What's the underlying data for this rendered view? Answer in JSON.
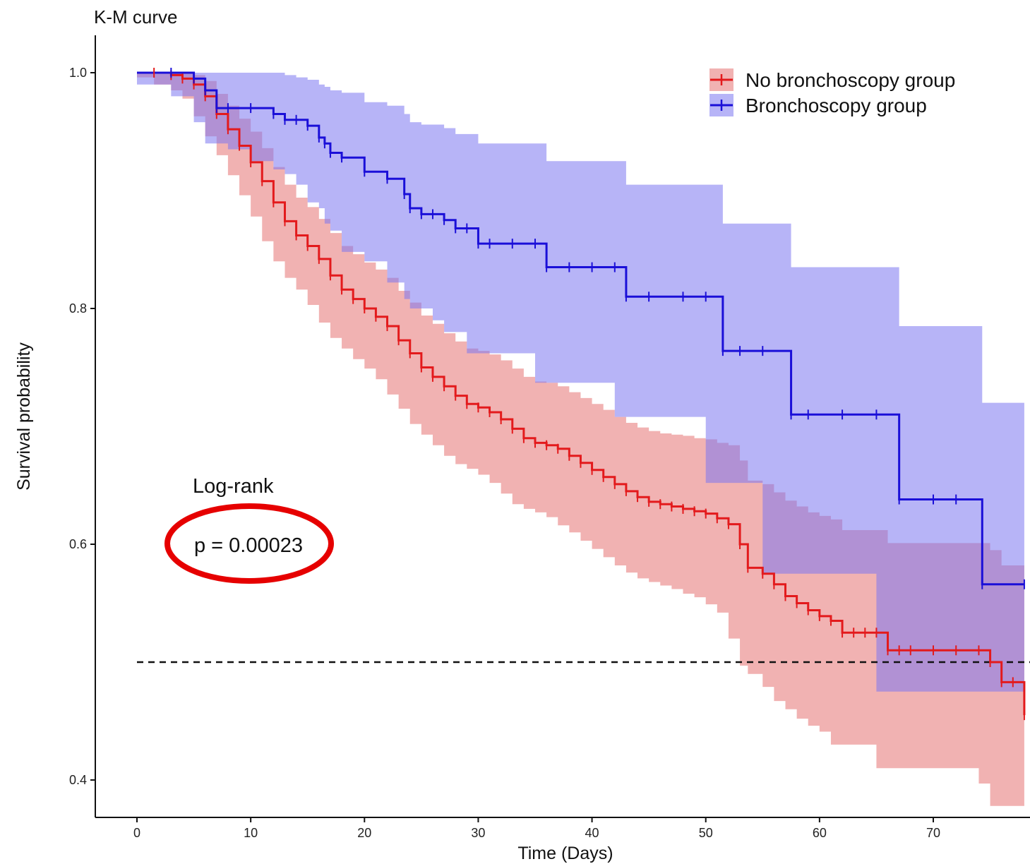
{
  "chart_data": {
    "type": "line",
    "title": "K-M curve",
    "xlabel": "Time (Days)",
    "ylabel": "Survival probability",
    "xlim": [
      -3.5,
      78
    ],
    "ylim": [
      0.385,
      1.03
    ],
    "x_ticks": [
      0,
      10,
      20,
      30,
      40,
      50,
      60,
      70
    ],
    "y_ticks": [
      0.4,
      0.6,
      0.8,
      1.0
    ],
    "x_tick_labels": [
      "0",
      "10",
      "20",
      "30",
      "40",
      "50",
      "60",
      "70"
    ],
    "y_tick_labels": [
      "0.4",
      "0.6",
      "0.8",
      "1.0"
    ],
    "grid": false,
    "legend_position": "top-right",
    "median_line": 0.5,
    "annotation": {
      "heading": "Log-rank",
      "text": "p = 0.00023",
      "highlight_color": "#e60000"
    },
    "series": [
      {
        "name": "No bronchoscopy group",
        "color": "#e31a1c",
        "band_color": "#e57373",
        "x": [
          0,
          1.5,
          3,
          4,
          5,
          6,
          7,
          8,
          9,
          10,
          11,
          12,
          13,
          14,
          15,
          16,
          17,
          18,
          19,
          20,
          21,
          22,
          23,
          24,
          25,
          26,
          27,
          28,
          29,
          30,
          31,
          32,
          33,
          34,
          35,
          36,
          37,
          38,
          39,
          40,
          41,
          42,
          43,
          44,
          45,
          46,
          47,
          48,
          49,
          50,
          51,
          52,
          53,
          53.7,
          55,
          56,
          57,
          58,
          59,
          60,
          61,
          62,
          63,
          64,
          65,
          66,
          67,
          68,
          70,
          72,
          74,
          75,
          76,
          77,
          78
        ],
        "y": [
          1.0,
          1.0,
          0.998,
          0.995,
          0.99,
          0.98,
          0.965,
          0.952,
          0.938,
          0.924,
          0.908,
          0.89,
          0.874,
          0.862,
          0.853,
          0.842,
          0.828,
          0.816,
          0.808,
          0.8,
          0.793,
          0.785,
          0.773,
          0.762,
          0.75,
          0.742,
          0.734,
          0.726,
          0.719,
          0.716,
          0.712,
          0.706,
          0.698,
          0.69,
          0.686,
          0.684,
          0.681,
          0.675,
          0.669,
          0.663,
          0.657,
          0.651,
          0.645,
          0.64,
          0.636,
          0.634,
          0.632,
          0.63,
          0.628,
          0.626,
          0.622,
          0.617,
          0.6,
          0.58,
          0.575,
          0.566,
          0.556,
          0.55,
          0.544,
          0.539,
          0.535,
          0.525,
          0.525,
          0.525,
          0.525,
          0.51,
          0.51,
          0.51,
          0.51,
          0.51,
          0.51,
          0.5,
          0.483,
          0.483,
          0.455
        ],
        "lower": [
          1.0,
          0.996,
          0.99,
          0.985,
          0.978,
          0.963,
          0.946,
          0.93,
          0.913,
          0.896,
          0.878,
          0.857,
          0.84,
          0.826,
          0.816,
          0.803,
          0.788,
          0.775,
          0.766,
          0.757,
          0.749,
          0.74,
          0.727,
          0.715,
          0.702,
          0.693,
          0.684,
          0.675,
          0.668,
          0.664,
          0.659,
          0.652,
          0.643,
          0.634,
          0.63,
          0.627,
          0.623,
          0.616,
          0.61,
          0.603,
          0.596,
          0.589,
          0.582,
          0.576,
          0.571,
          0.568,
          0.565,
          0.562,
          0.558,
          0.555,
          0.549,
          0.542,
          0.52,
          0.497,
          0.49,
          0.479,
          0.467,
          0.46,
          0.452,
          0.446,
          0.441,
          0.43,
          0.43,
          0.43,
          0.43,
          0.41,
          0.41,
          0.41,
          0.41,
          0.41,
          0.41,
          0.397,
          0.378,
          0.378,
          0.378
        ],
        "upper": [
          1.0,
          1.0,
          1.0,
          1.0,
          0.998,
          0.993,
          0.982,
          0.972,
          0.961,
          0.95,
          0.936,
          0.92,
          0.905,
          0.894,
          0.886,
          0.876,
          0.864,
          0.853,
          0.846,
          0.839,
          0.833,
          0.826,
          0.815,
          0.805,
          0.794,
          0.787,
          0.779,
          0.772,
          0.766,
          0.764,
          0.761,
          0.756,
          0.749,
          0.742,
          0.738,
          0.737,
          0.734,
          0.729,
          0.724,
          0.719,
          0.714,
          0.708,
          0.703,
          0.699,
          0.696,
          0.694,
          0.693,
          0.692,
          0.69,
          0.689,
          0.686,
          0.684,
          0.671,
          0.654,
          0.651,
          0.644,
          0.637,
          0.632,
          0.627,
          0.624,
          0.621,
          0.612,
          0.612,
          0.612,
          0.612,
          0.601,
          0.601,
          0.601,
          0.601,
          0.601,
          0.601,
          0.595,
          0.582,
          0.582,
          0.582
        ]
      },
      {
        "name": "Bronchoscopy group",
        "color": "#1a0fd8",
        "band_color": "#7b77f0",
        "x": [
          0,
          3,
          5,
          6,
          7,
          8,
          10,
          12,
          13,
          14,
          15,
          16,
          16.5,
          17,
          18,
          20,
          22,
          23.5,
          24,
          25,
          26,
          27,
          28,
          29,
          30,
          31,
          33,
          35,
          36,
          38,
          40,
          42,
          43,
          45,
          48,
          50,
          51.5,
          53,
          55,
          57.5,
          59,
          62,
          65,
          67,
          70,
          72,
          74.3,
          78
        ],
        "y": [
          1.0,
          1.0,
          0.995,
          0.985,
          0.97,
          0.97,
          0.97,
          0.965,
          0.96,
          0.96,
          0.955,
          0.945,
          0.94,
          0.932,
          0.928,
          0.916,
          0.91,
          0.897,
          0.885,
          0.88,
          0.88,
          0.875,
          0.868,
          0.868,
          0.855,
          0.855,
          0.855,
          0.855,
          0.835,
          0.835,
          0.835,
          0.835,
          0.81,
          0.81,
          0.81,
          0.81,
          0.764,
          0.764,
          0.764,
          0.71,
          0.71,
          0.71,
          0.71,
          0.638,
          0.638,
          0.638,
          0.566,
          0.566
        ],
        "lower": [
          1.0,
          0.99,
          0.98,
          0.958,
          0.94,
          0.94,
          0.935,
          0.925,
          0.918,
          0.914,
          0.905,
          0.89,
          0.885,
          0.872,
          0.866,
          0.848,
          0.84,
          0.822,
          0.808,
          0.8,
          0.8,
          0.79,
          0.78,
          0.78,
          0.762,
          0.762,
          0.762,
          0.762,
          0.737,
          0.737,
          0.737,
          0.737,
          0.708,
          0.708,
          0.708,
          0.708,
          0.652,
          0.652,
          0.652,
          0.575,
          0.575,
          0.575,
          0.575,
          0.475,
          0.475,
          0.475,
          0.475,
          0.475
        ],
        "upper": [
          1.0,
          1.0,
          1.0,
          1.0,
          1.0,
          1.0,
          1.0,
          1.0,
          0.998,
          0.996,
          0.994,
          0.99,
          0.988,
          0.985,
          0.983,
          0.975,
          0.972,
          0.965,
          0.958,
          0.956,
          0.956,
          0.953,
          0.948,
          0.948,
          0.94,
          0.94,
          0.94,
          0.94,
          0.925,
          0.925,
          0.925,
          0.925,
          0.905,
          0.905,
          0.905,
          0.905,
          0.872,
          0.872,
          0.872,
          0.835,
          0.835,
          0.835,
          0.835,
          0.785,
          0.785,
          0.785,
          0.72,
          0.72
        ]
      }
    ]
  }
}
